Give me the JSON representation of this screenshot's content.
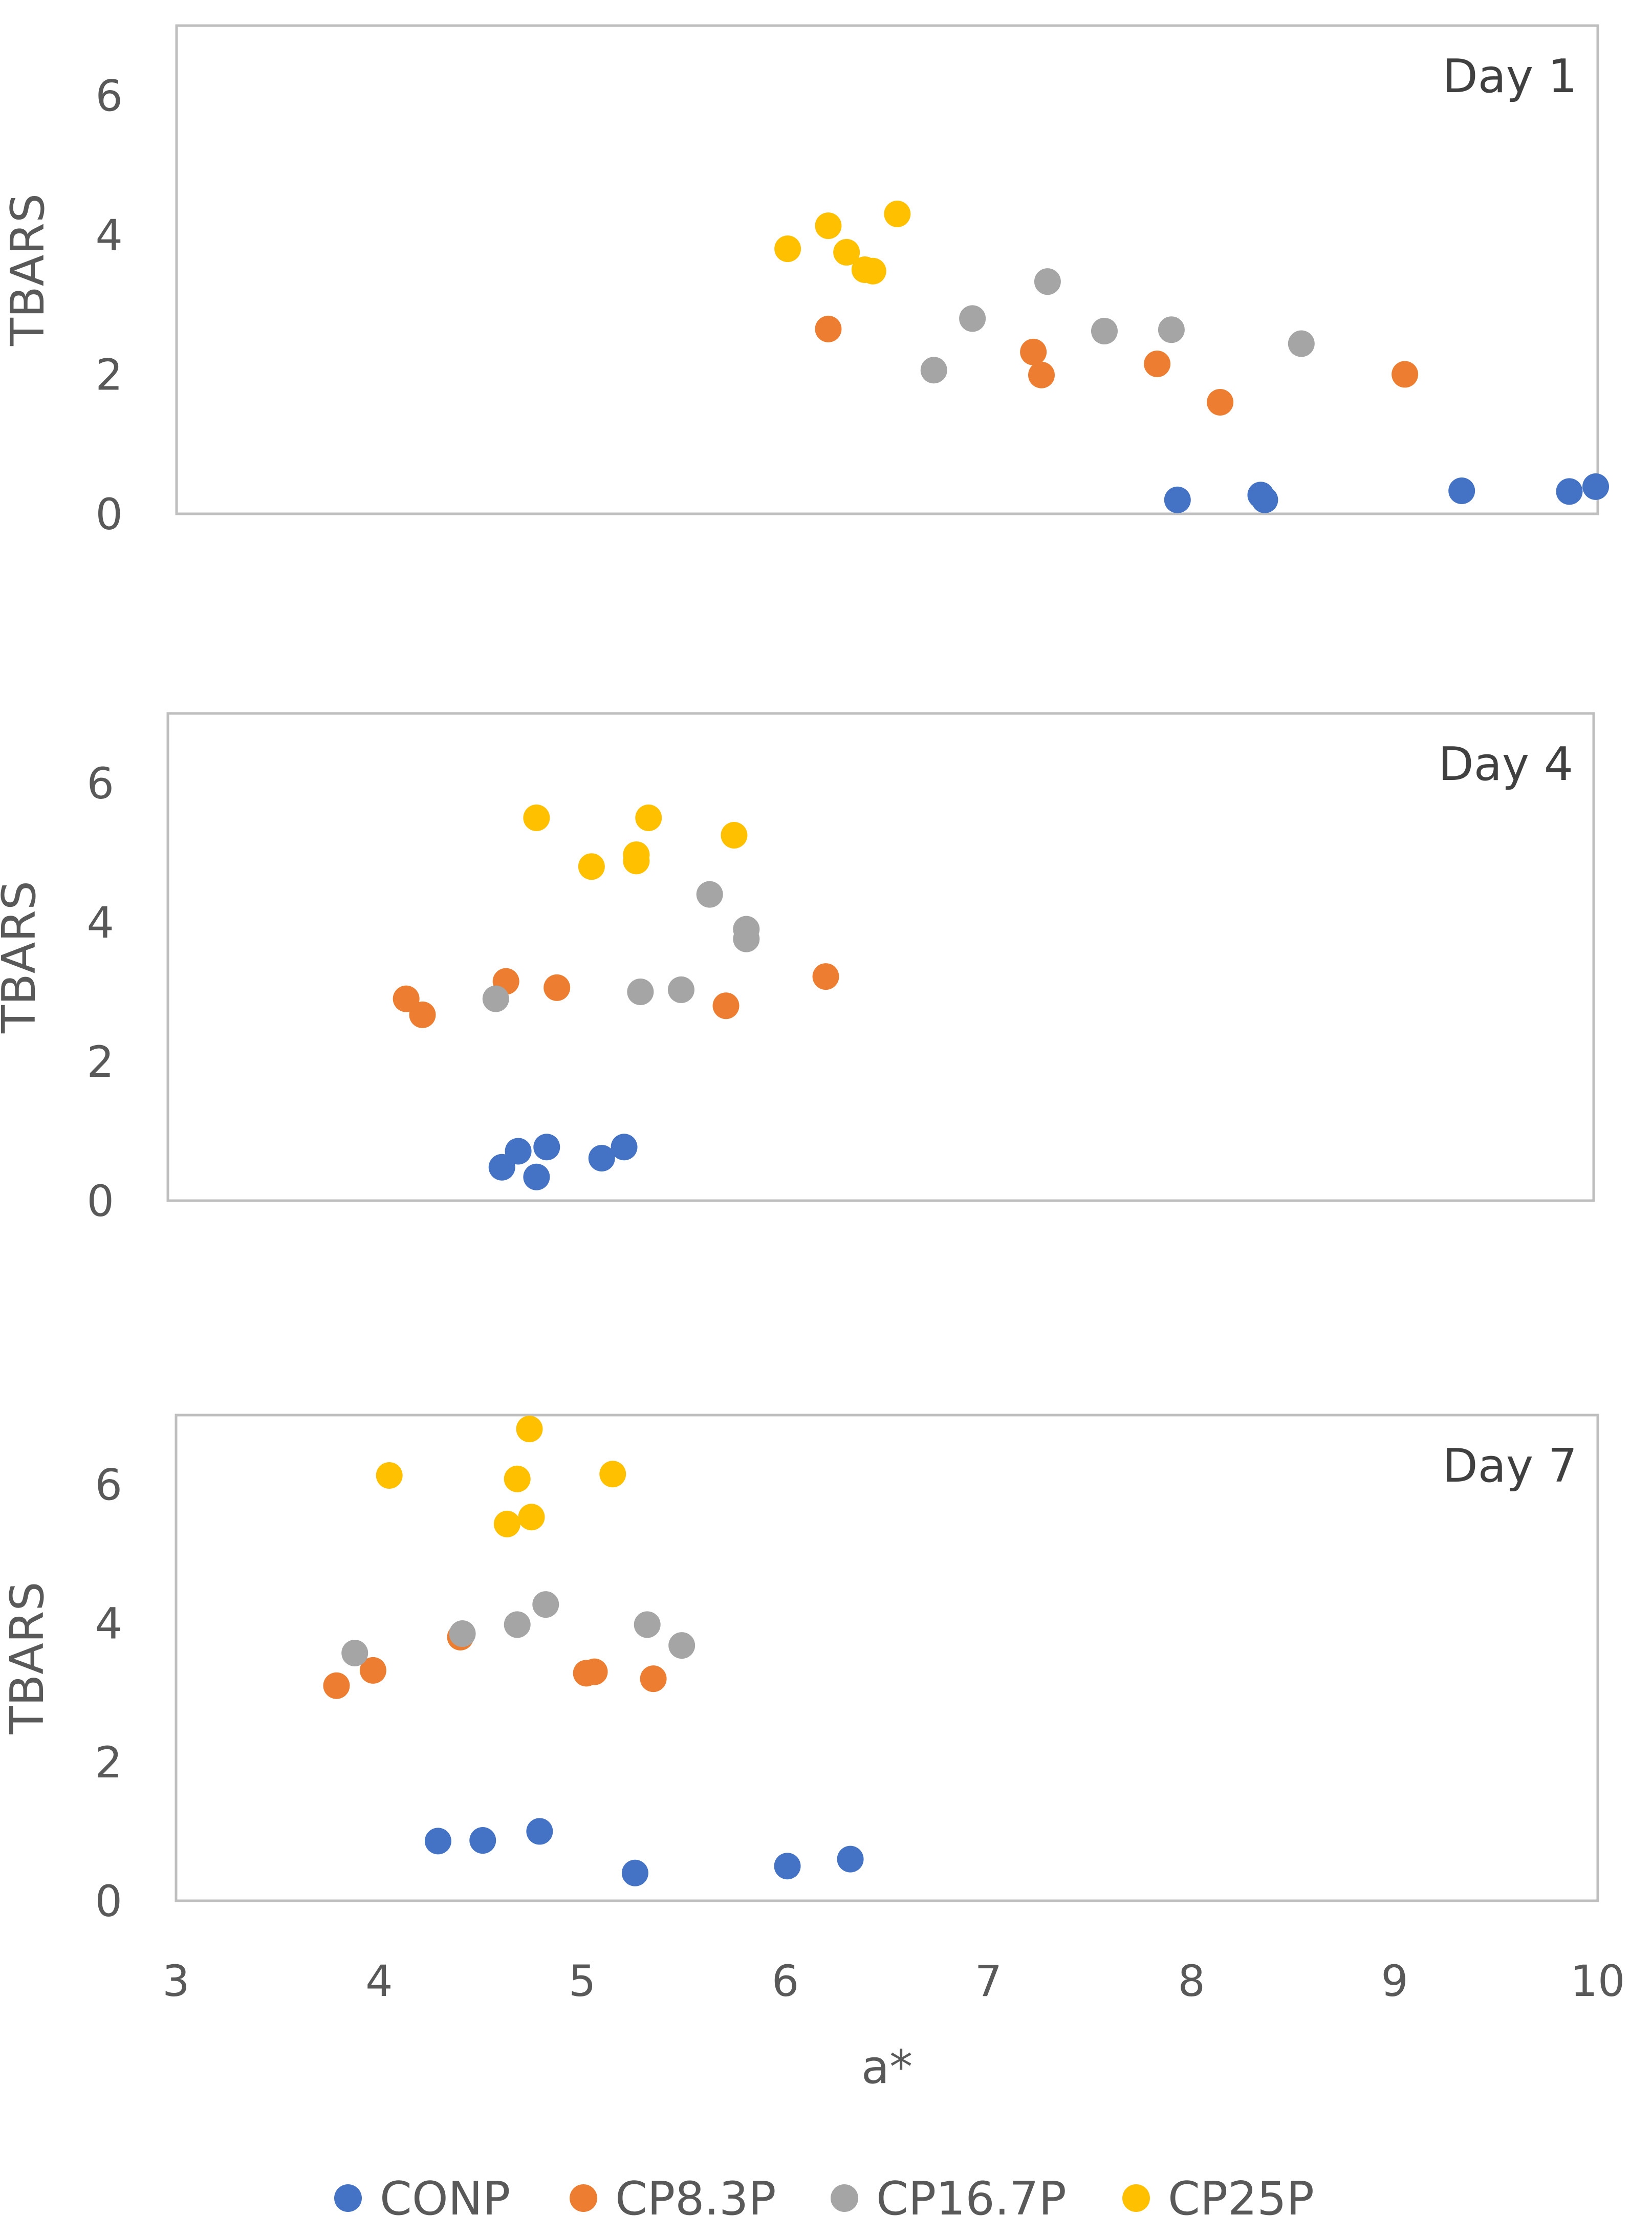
{
  "chart_data": {
    "type": "scatter",
    "series_colors": {
      "CONP": "#4472c4",
      "CP8.3P": "#ed7d31",
      "CP16.7P": "#a5a5a5",
      "CP25P": "#ffc000"
    },
    "legend": [
      "CONP",
      "CP8.3P",
      "CP16.7P",
      "CP25P"
    ],
    "xlabel": "a*",
    "xlim": [
      3,
      10
    ],
    "x_ticks": [
      "3",
      "4",
      "5",
      "6",
      "7",
      "8",
      "9",
      "10"
    ],
    "panels": [
      {
        "title": "Day 1",
        "ylabel": "TBARS",
        "ylim": [
          0,
          7
        ],
        "y_ticks": [
          "0",
          "2",
          "4",
          "6"
        ],
        "series": [
          {
            "name": "CONP",
            "points": [
              [
                7.93,
                0.2
              ],
              [
                8.34,
                0.27
              ],
              [
                8.36,
                0.2
              ],
              [
                9.33,
                0.33
              ],
              [
                9.86,
                0.32
              ],
              [
                9.99,
                0.39
              ]
            ]
          },
          {
            "name": "CP8.3P",
            "points": [
              [
                6.21,
                2.65
              ],
              [
                7.22,
                2.32
              ],
              [
                7.26,
                1.99
              ],
              [
                7.83,
                2.15
              ],
              [
                8.14,
                1.6
              ],
              [
                9.05,
                2.0
              ]
            ]
          },
          {
            "name": "CP16.7P",
            "points": [
              [
                6.73,
                2.06
              ],
              [
                6.92,
                2.8
              ],
              [
                7.29,
                3.33
              ],
              [
                7.57,
                2.62
              ],
              [
                7.9,
                2.64
              ],
              [
                8.54,
                2.44
              ]
            ]
          },
          {
            "name": "CP25P",
            "points": [
              [
                6.01,
                3.8
              ],
              [
                6.21,
                4.13
              ],
              [
                6.3,
                3.75
              ],
              [
                6.39,
                3.5
              ],
              [
                6.43,
                3.48
              ],
              [
                6.55,
                4.3
              ]
            ]
          }
        ]
      },
      {
        "title": "Day 4",
        "ylabel": "TBARS",
        "ylim": [
          0,
          7
        ],
        "y_ticks": [
          "0",
          "2",
          "4",
          "6"
        ],
        "series": [
          {
            "name": "CONP",
            "points": [
              [
                4.64,
                0.48
              ],
              [
                4.72,
                0.71
              ],
              [
                4.81,
                0.34
              ],
              [
                4.86,
                0.77
              ],
              [
                5.13,
                0.61
              ],
              [
                5.24,
                0.77
              ]
            ]
          },
          {
            "name": "CP8.3P",
            "points": [
              [
                4.17,
                2.9
              ],
              [
                4.25,
                2.67
              ],
              [
                4.66,
                3.15
              ],
              [
                4.91,
                3.06
              ],
              [
                5.74,
                2.8
              ],
              [
                6.23,
                3.22
              ]
            ]
          },
          {
            "name": "CP16.7P",
            "points": [
              [
                4.61,
                2.9
              ],
              [
                5.32,
                3.0
              ],
              [
                5.52,
                3.03
              ],
              [
                5.66,
                4.4
              ],
              [
                5.84,
                3.9
              ],
              [
                5.84,
                3.76
              ]
            ]
          },
          {
            "name": "CP25P",
            "points": [
              [
                4.81,
                5.5
              ],
              [
                5.08,
                4.8
              ],
              [
                5.3,
                4.97
              ],
              [
                5.3,
                4.88
              ],
              [
                5.36,
                5.5
              ],
              [
                5.78,
                5.25
              ]
            ]
          }
        ]
      },
      {
        "title": "Day 7",
        "ylabel": "TBARS",
        "ylim": [
          0,
          7
        ],
        "y_ticks": [
          "0",
          "2",
          "4",
          "6"
        ],
        "series": [
          {
            "name": "CONP",
            "points": [
              [
                4.29,
                0.86
              ],
              [
                4.51,
                0.87
              ],
              [
                4.79,
                1.0
              ],
              [
                5.26,
                0.4
              ],
              [
                6.01,
                0.5
              ],
              [
                6.32,
                0.6
              ]
            ]
          },
          {
            "name": "CP8.3P",
            "points": [
              [
                3.79,
                3.1
              ],
              [
                3.97,
                3.32
              ],
              [
                4.4,
                3.8
              ],
              [
                5.02,
                3.28
              ],
              [
                5.06,
                3.3
              ],
              [
                5.35,
                3.2
              ]
            ]
          },
          {
            "name": "CP16.7P",
            "points": [
              [
                3.88,
                3.57
              ],
              [
                4.41,
                3.85
              ],
              [
                4.68,
                3.98
              ],
              [
                4.82,
                4.27
              ],
              [
                5.32,
                3.98
              ],
              [
                5.49,
                3.68
              ]
            ]
          },
          {
            "name": "CP25P",
            "points": [
              [
                4.05,
                6.13
              ],
              [
                4.63,
                5.43
              ],
              [
                4.68,
                6.08
              ],
              [
                4.74,
                6.8
              ],
              [
                4.75,
                5.53
              ],
              [
                5.15,
                6.15
              ]
            ]
          }
        ]
      }
    ]
  }
}
